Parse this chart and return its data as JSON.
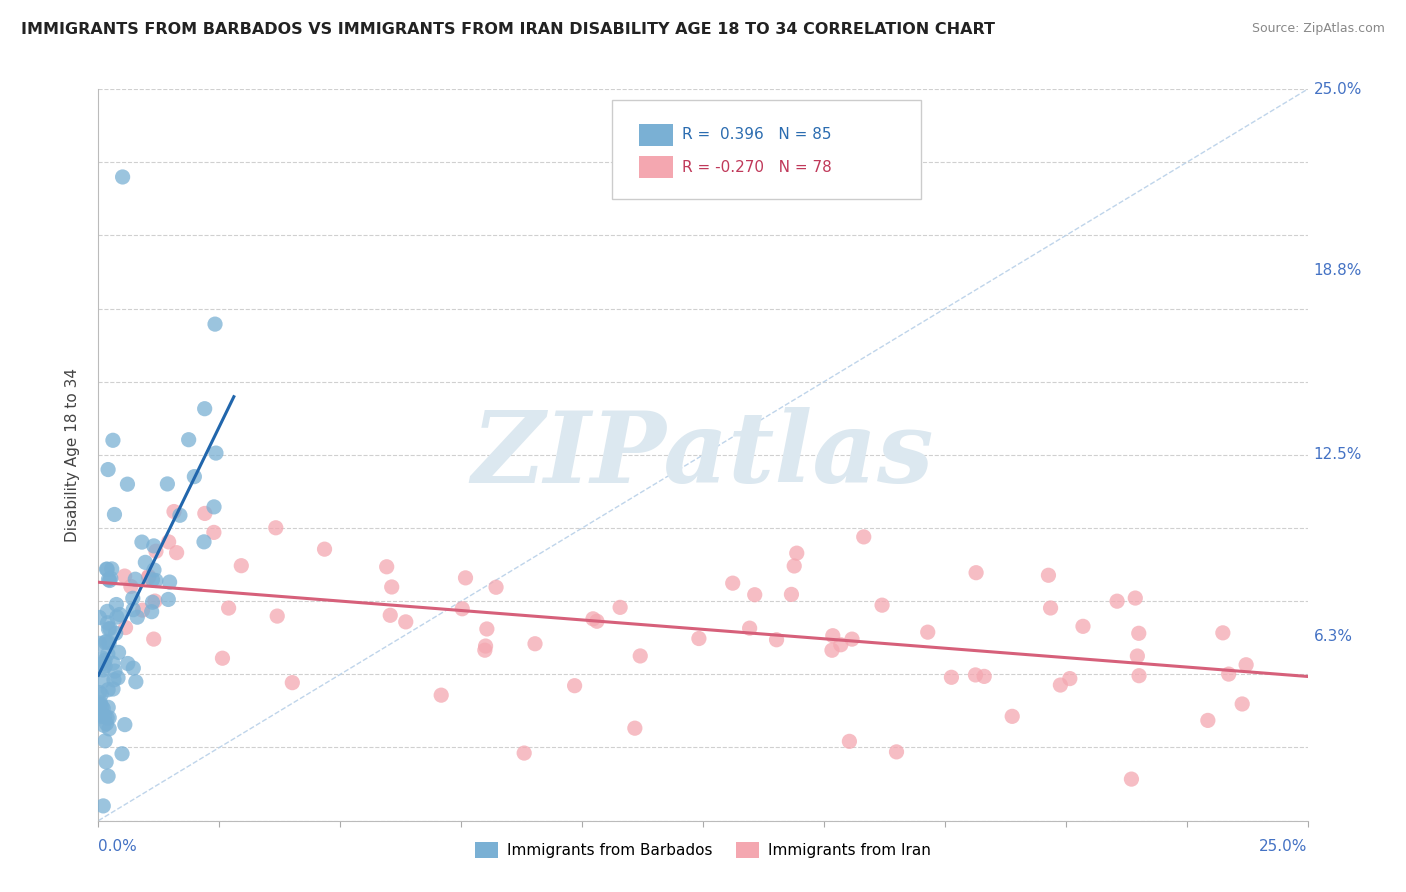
{
  "title": "IMMIGRANTS FROM BARBADOS VS IMMIGRANTS FROM IRAN DISABILITY AGE 18 TO 34 CORRELATION CHART",
  "source": "Source: ZipAtlas.com",
  "ylabel_label": "Disability Age 18 to 34",
  "right_yticklabels": [
    "6.3%",
    "12.5%",
    "18.8%",
    "25.0%"
  ],
  "right_ytick_vals": [
    0.063,
    0.125,
    0.188,
    0.25
  ],
  "barbados_color": "#7ab0d4",
  "iran_color": "#f4a7b0",
  "barbados_trend_color": "#2166ac",
  "iran_trend_color": "#d6607a",
  "diagonal_color": "#b8d0e8",
  "grid_color": "#d0d0d0",
  "background_color": "#ffffff",
  "watermark": "ZIPatlas",
  "xmin": 0.0,
  "xmax": 0.25,
  "ymin": 0.0,
  "ymax": 0.25,
  "legend_barbados_R": "R =  0.396",
  "legend_barbados_N": "N = 85",
  "legend_iran_R": "R = -0.270",
  "legend_iran_N": "N = 78",
  "bottom_label_barbados": "Immigrants from Barbados",
  "bottom_label_iran": "Immigrants from Iran"
}
